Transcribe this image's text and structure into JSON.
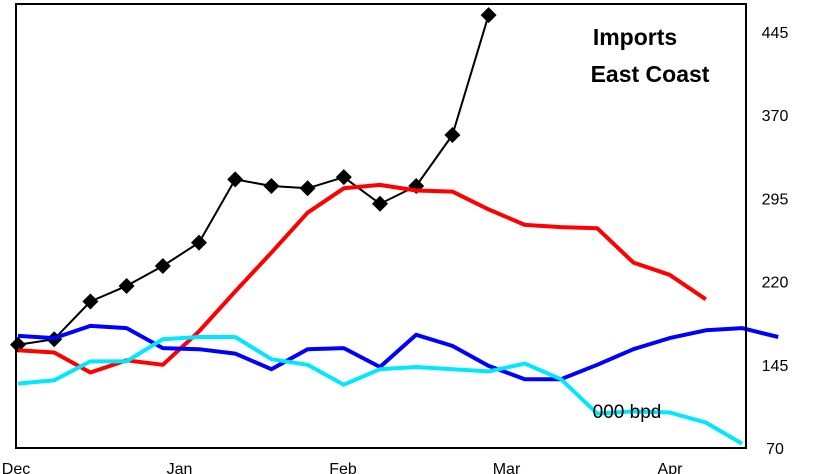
{
  "chart_data": {
    "type": "line",
    "title": [
      "Imports",
      "East Coast"
    ],
    "unit_label": "000 bpd",
    "x_ticks": [
      "Dec",
      "Jan",
      "Feb",
      "Mar",
      "Apr"
    ],
    "y_ticks": [
      "70",
      "145",
      "220",
      "295",
      "370",
      "445"
    ],
    "ylim": [
      70,
      470
    ],
    "y_axis_side": "right",
    "grid": false,
    "series": [
      {
        "color": "#000000",
        "marker": "diamond",
        "x": [
          0,
          1,
          2,
          3,
          4,
          5,
          6,
          7,
          8,
          9,
          10,
          11,
          12,
          13
        ],
        "values": [
          163,
          168,
          202,
          216,
          234,
          255,
          312,
          306,
          304,
          314,
          290,
          306,
          352,
          460
        ]
      },
      {
        "color": "#ff0000",
        "marker": "none",
        "x": [
          0,
          1,
          2,
          3,
          4,
          5,
          6,
          7,
          8,
          9,
          10,
          11,
          12,
          13,
          14,
          15,
          16,
          17,
          18,
          19
        ],
        "values": [
          158,
          156,
          138,
          149,
          145,
          175,
          211,
          246,
          282,
          304,
          307,
          302,
          301,
          285,
          271,
          269,
          268,
          237,
          226,
          204
        ]
      },
      {
        "color": "#0000ff",
        "marker": "none",
        "x": [
          0,
          1,
          2,
          3,
          4,
          5,
          6,
          7,
          8,
          9,
          10,
          11,
          12,
          13,
          14,
          15,
          16,
          17,
          18,
          19,
          20,
          21
        ],
        "values": [
          171,
          169,
          180,
          178,
          160,
          159,
          155,
          141,
          159,
          160,
          143,
          172,
          162,
          144,
          132,
          132,
          145,
          159,
          169,
          176,
          178,
          170
        ]
      },
      {
        "color": "#00e8ff",
        "marker": "none",
        "x": [
          0,
          1,
          2,
          3,
          4,
          5,
          6,
          7,
          8,
          9,
          10,
          11,
          12,
          13,
          14,
          15,
          16,
          17,
          18,
          19,
          20
        ],
        "values": [
          128,
          131,
          148,
          148,
          168,
          170,
          170,
          150,
          145,
          127,
          141,
          143,
          141,
          139,
          146,
          132,
          101,
          103,
          102,
          93,
          74
        ]
      }
    ]
  }
}
